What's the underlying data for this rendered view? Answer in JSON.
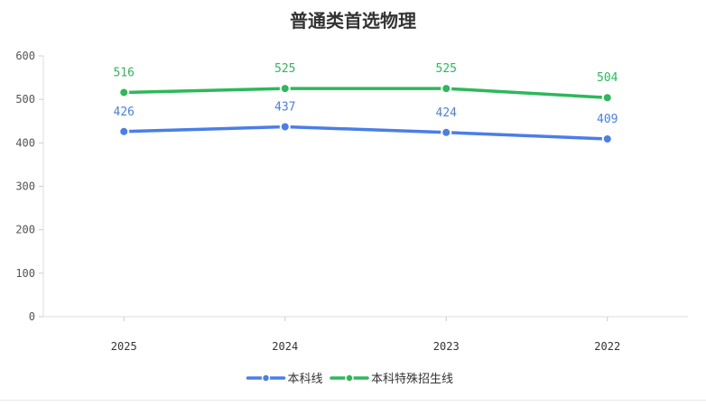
{
  "chart_data": {
    "type": "line",
    "title": "普通类首选物理",
    "categories": [
      "2025",
      "2024",
      "2023",
      "2022"
    ],
    "ylim": [
      0,
      600
    ],
    "yticks": [
      0,
      100,
      200,
      300,
      400,
      500,
      600
    ],
    "grid": false,
    "legend_position": "bottom-center",
    "series": [
      {
        "name": "本科线",
        "color": "#4a7ee8",
        "values": [
          426,
          437,
          424,
          409
        ]
      },
      {
        "name": "本科特殊招生线",
        "color": "#2db85a",
        "values": [
          516,
          525,
          525,
          504
        ]
      }
    ]
  }
}
